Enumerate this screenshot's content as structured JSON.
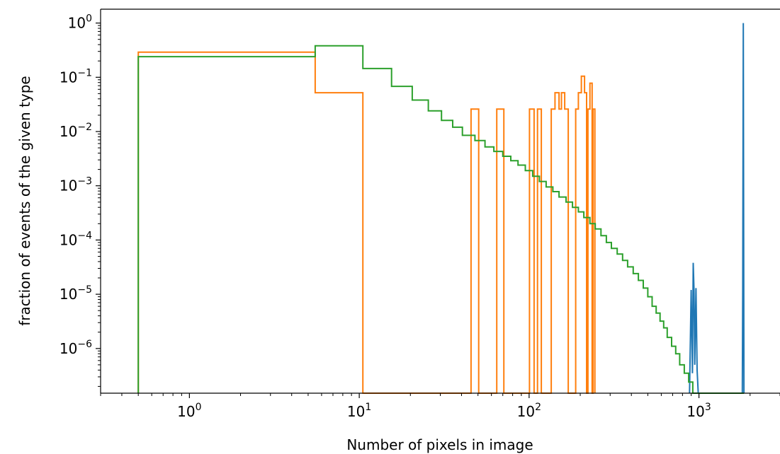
{
  "chart_data": {
    "type": "line",
    "step": true,
    "xscale": "log",
    "yscale": "log",
    "xlim": [
      0.3,
      3000
    ],
    "ylim": [
      1.5e-07,
      1.8
    ],
    "xlabel": "Number of pixels in image",
    "ylabel": "fraction of events of the given type",
    "grid": false,
    "legend": "none",
    "x_ticks": [
      {
        "value": 1,
        "base": "10",
        "exp": "0"
      },
      {
        "value": 10,
        "base": "10",
        "exp": "1"
      },
      {
        "value": 100,
        "base": "10",
        "exp": "2"
      },
      {
        "value": 1000,
        "base": "10",
        "exp": "3"
      }
    ],
    "y_ticks": [
      {
        "value": 1,
        "base": "10",
        "exp": "0"
      },
      {
        "value": 0.1,
        "base": "10",
        "exp": "−1"
      },
      {
        "value": 0.01,
        "base": "10",
        "exp": "−2"
      },
      {
        "value": 0.001,
        "base": "10",
        "exp": "−3"
      },
      {
        "value": 0.0001,
        "base": "10",
        "exp": "−4"
      },
      {
        "value": 1e-05,
        "base": "10",
        "exp": "−5"
      },
      {
        "value": 1e-06,
        "base": "10",
        "exp": "−6"
      }
    ],
    "series": [
      {
        "color": "#1f77b4",
        "points": [
          [
            880,
            1.5e-07
          ],
          [
            900,
            1.2e-05
          ],
          [
            915,
            3.5e-07
          ],
          [
            925,
            3.8e-05
          ],
          [
            935,
            1.2e-05
          ],
          [
            945,
            5e-07
          ],
          [
            960,
            1.3e-05
          ],
          [
            975,
            4e-07
          ],
          [
            990,
            1.5e-07
          ],
          [
            1800,
            1.5e-07
          ],
          [
            1810,
            1.2e-05
          ],
          [
            1825,
            1.0
          ],
          [
            1840,
            1.5e-07
          ]
        ]
      },
      {
        "color": "#ff7f0e",
        "points": [
          [
            0.5,
            1.5e-07
          ],
          [
            0.5,
            0.29
          ],
          [
            5.5,
            0.29
          ],
          [
            5.5,
            0.052
          ],
          [
            10.5,
            0.052
          ],
          [
            10.5,
            1.5e-07
          ],
          [
            45.5,
            1.5e-07
          ],
          [
            45.5,
            0.026
          ],
          [
            50.5,
            0.026
          ],
          [
            50.5,
            1.5e-07
          ],
          [
            64.5,
            1.5e-07
          ],
          [
            64.5,
            0.026
          ],
          [
            71,
            0.026
          ],
          [
            71,
            1.5e-07
          ],
          [
            100.5,
            1.5e-07
          ],
          [
            100.5,
            0.026
          ],
          [
            107,
            0.026
          ],
          [
            107,
            1.5e-07
          ],
          [
            112,
            1.5e-07
          ],
          [
            112,
            0.026
          ],
          [
            118,
            0.026
          ],
          [
            118,
            1.5e-07
          ],
          [
            135,
            1.5e-07
          ],
          [
            135,
            0.026
          ],
          [
            142,
            0.026
          ],
          [
            142,
            0.052
          ],
          [
            150,
            0.052
          ],
          [
            150,
            0.026
          ],
          [
            155,
            0.026
          ],
          [
            155,
            0.052
          ],
          [
            162,
            0.052
          ],
          [
            162,
            0.026
          ],
          [
            170,
            0.026
          ],
          [
            170,
            1.5e-07
          ],
          [
            188,
            1.5e-07
          ],
          [
            188,
            0.026
          ],
          [
            195,
            0.026
          ],
          [
            195,
            0.052
          ],
          [
            203,
            0.052
          ],
          [
            203,
            0.105
          ],
          [
            212,
            0.105
          ],
          [
            212,
            0.052
          ],
          [
            218,
            0.052
          ],
          [
            218,
            1.5e-07
          ],
          [
            222,
            1.5e-07
          ],
          [
            222,
            0.026
          ],
          [
            228,
            0.026
          ],
          [
            228,
            0.078
          ],
          [
            235,
            0.078
          ],
          [
            235,
            1.5e-07
          ],
          [
            238,
            1.5e-07
          ],
          [
            238,
            0.026
          ],
          [
            244,
            0.026
          ],
          [
            244,
            1.5e-07
          ]
        ]
      },
      {
        "color": "#2ca02c",
        "points": [
          [
            0.5,
            1.5e-07
          ],
          [
            0.5,
            0.24
          ],
          [
            5.5,
            0.24
          ],
          [
            5.5,
            0.38
          ],
          [
            10.5,
            0.38
          ],
          [
            10.5,
            0.145
          ],
          [
            15.5,
            0.145
          ],
          [
            15.5,
            0.068
          ],
          [
            20.5,
            0.068
          ],
          [
            20.5,
            0.038
          ],
          [
            25.5,
            0.038
          ],
          [
            25.5,
            0.024
          ],
          [
            30.5,
            0.024
          ],
          [
            30.5,
            0.016
          ],
          [
            35.5,
            0.016
          ],
          [
            35.5,
            0.012
          ],
          [
            40.5,
            0.012
          ],
          [
            40.5,
            0.0085
          ],
          [
            48,
            0.0085
          ],
          [
            48,
            0.0068
          ],
          [
            55,
            0.0068
          ],
          [
            55,
            0.0052
          ],
          [
            62,
            0.0052
          ],
          [
            62,
            0.0043
          ],
          [
            70,
            0.0043
          ],
          [
            70,
            0.0035
          ],
          [
            78,
            0.0035
          ],
          [
            78,
            0.0029
          ],
          [
            86,
            0.0029
          ],
          [
            86,
            0.0024
          ],
          [
            95,
            0.0024
          ],
          [
            95,
            0.0019
          ],
          [
            105,
            0.0019
          ],
          [
            105,
            0.0015
          ],
          [
            115,
            0.0015
          ],
          [
            115,
            0.0012
          ],
          [
            126,
            0.0012
          ],
          [
            126,
            0.00095
          ],
          [
            138,
            0.00095
          ],
          [
            138,
            0.00078
          ],
          [
            150,
            0.00078
          ],
          [
            150,
            0.00062
          ],
          [
            165,
            0.00062
          ],
          [
            165,
            0.0005
          ],
          [
            180,
            0.0005
          ],
          [
            180,
            0.0004
          ],
          [
            195,
            0.0004
          ],
          [
            195,
            0.00033
          ],
          [
            210,
            0.00033
          ],
          [
            210,
            0.00026
          ],
          [
            228,
            0.00026
          ],
          [
            228,
            0.0002
          ],
          [
            245,
            0.0002
          ],
          [
            245,
            0.00016
          ],
          [
            265,
            0.00016
          ],
          [
            265,
            0.00012
          ],
          [
            285,
            0.00012
          ],
          [
            285,
            9e-05
          ],
          [
            305,
            9e-05
          ],
          [
            305,
            7e-05
          ],
          [
            330,
            7e-05
          ],
          [
            330,
            5.5e-05
          ],
          [
            355,
            5.5e-05
          ],
          [
            355,
            4.2e-05
          ],
          [
            380,
            4.2e-05
          ],
          [
            380,
            3.2e-05
          ],
          [
            410,
            3.2e-05
          ],
          [
            410,
            2.4e-05
          ],
          [
            440,
            2.4e-05
          ],
          [
            440,
            1.8e-05
          ],
          [
            470,
            1.8e-05
          ],
          [
            470,
            1.3e-05
          ],
          [
            500,
            1.3e-05
          ],
          [
            500,
            9e-06
          ],
          [
            530,
            9e-06
          ],
          [
            530,
            6e-06
          ],
          [
            560,
            6e-06
          ],
          [
            560,
            4.5e-06
          ],
          [
            590,
            4.5e-06
          ],
          [
            590,
            3.2e-06
          ],
          [
            620,
            3.2e-06
          ],
          [
            620,
            2.4e-06
          ],
          [
            650,
            2.4e-06
          ],
          [
            650,
            1.6e-06
          ],
          [
            690,
            1.6e-06
          ],
          [
            690,
            1.1e-06
          ],
          [
            730,
            1.1e-06
          ],
          [
            730,
            8e-07
          ],
          [
            770,
            8e-07
          ],
          [
            770,
            5e-07
          ],
          [
            820,
            5e-07
          ],
          [
            820,
            3.5e-07
          ],
          [
            870,
            3.5e-07
          ],
          [
            870,
            2.4e-07
          ],
          [
            920,
            2.4e-07
          ],
          [
            920,
            1.5e-07
          ],
          [
            1840,
            1.5e-07
          ]
        ]
      }
    ]
  }
}
